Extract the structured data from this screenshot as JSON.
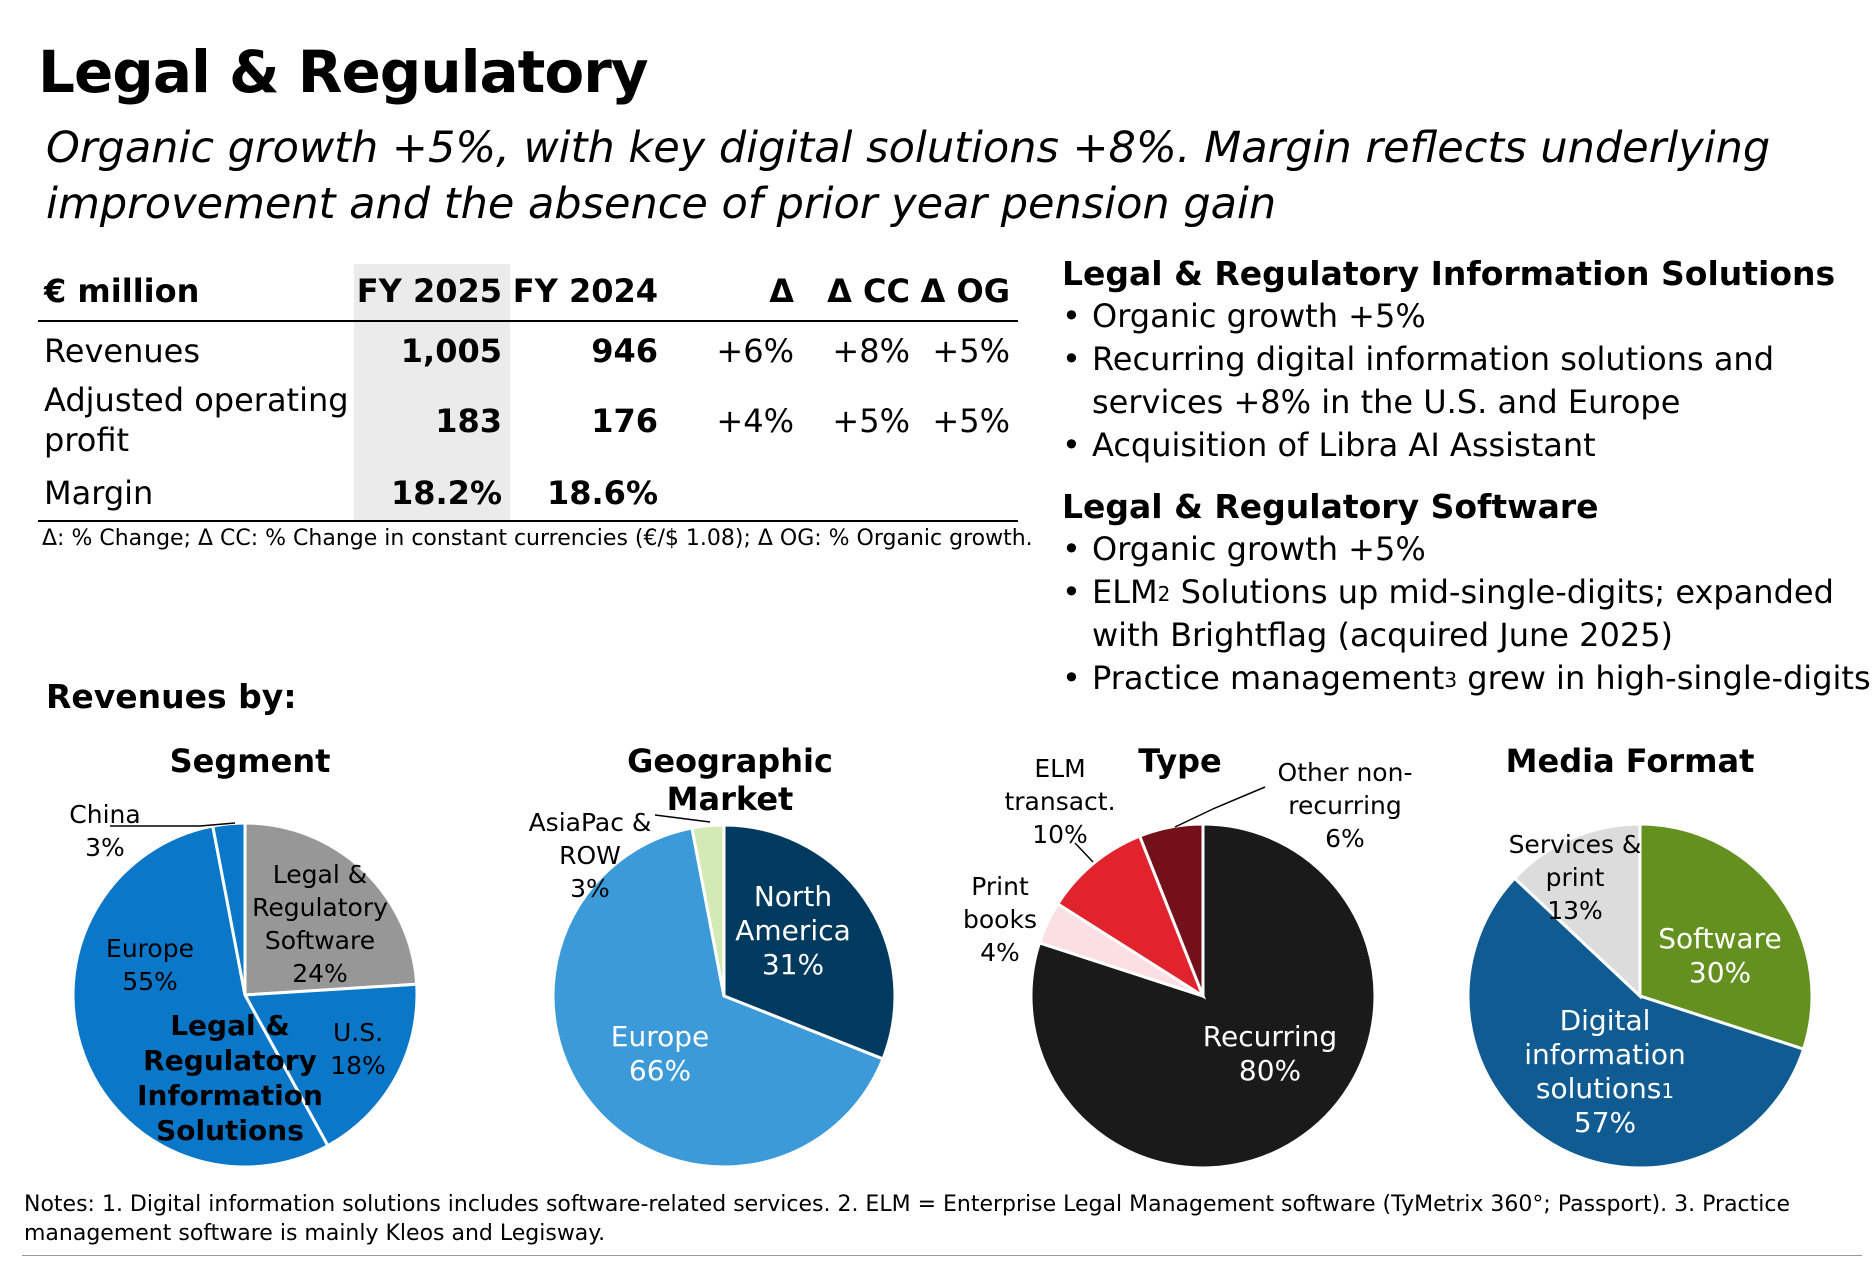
{
  "title": "Legal & Regulatory",
  "subtitle": "Organic growth +5%, with key digital solutions +8%. Margin reflects underlying improvement and the absence of prior year pension gain",
  "table": {
    "headers": [
      "€ million",
      "FY 2025",
      "FY 2024",
      "Δ",
      "Δ CC",
      "Δ OG"
    ],
    "rows": [
      {
        "label": "Revenues",
        "fy2025": "1,005",
        "fy2024": "946",
        "d": "+6%",
        "dcc": "+8%",
        "dog": "+5%"
      },
      {
        "label": "Adjusted operating profit",
        "fy2025": "183",
        "fy2024": "176",
        "d": "+4%",
        "dcc": "+5%",
        "dog": "+5%"
      },
      {
        "label": "Margin",
        "fy2025": "18.2%",
        "fy2024": "18.6%",
        "d": "",
        "dcc": "",
        "dog": ""
      }
    ],
    "footnote": "Δ: % Change; Δ CC: % Change in constant currencies (€/$ 1.08); Δ OG: % Organic growth."
  },
  "right": {
    "section1": {
      "heading": "Legal & Regulatory Information Solutions",
      "bullets": [
        "Organic growth +5%",
        "Recurring digital information solutions and services +8% in the U.S. and Europe",
        "Acquisition of Libra AI Assistant"
      ]
    },
    "section2": {
      "heading": "Legal & Regulatory Software",
      "bullets": [
        "Organic growth +5%",
        "ELM",
        "2",
        " Solutions up mid-single-digits; expanded with Brightflag (acquired June 2025)",
        "Practice management",
        "3",
        " grew in high-single-digits"
      ]
    }
  },
  "revenues_by": "Revenues by:",
  "chart_data": [
    {
      "type": "pie",
      "title": "Segment",
      "slices": [
        {
          "label": "Legal & Regulatory Software",
          "value": 24,
          "pct": "24%",
          "color": "#979797"
        },
        {
          "label": "U.S.",
          "value": 18,
          "pct": "18%",
          "color": "#0a77c8"
        },
        {
          "label": "Europe",
          "value": 55,
          "pct": "55%",
          "color": "#0a77c8"
        },
        {
          "label": "China",
          "value": 3,
          "pct": "3%",
          "color": "#0a77c8"
        }
      ],
      "group_label": "Legal & Regulatory Information Solutions"
    },
    {
      "type": "pie",
      "title": "Geographic Market",
      "slices": [
        {
          "label": "North America",
          "value": 31,
          "pct": "31%",
          "color": "#003b5f"
        },
        {
          "label": "Europe",
          "value": 66,
          "pct": "66%",
          "color": "#3b9ad7"
        },
        {
          "label": "AsiaPac & ROW",
          "value": 3,
          "pct": "3%",
          "color": "#d3e9b6"
        }
      ]
    },
    {
      "type": "pie",
      "title": "Type",
      "slices": [
        {
          "label": "Recurring",
          "value": 80,
          "pct": "80%",
          "color": "#1b1a1a"
        },
        {
          "label": "Print books",
          "value": 4,
          "pct": "4%",
          "color": "#fbdfe3"
        },
        {
          "label": "ELM transact.",
          "value": 10,
          "pct": "10%",
          "color": "#e1232d"
        },
        {
          "label": "Other non-recurring",
          "value": 6,
          "pct": "6%",
          "color": "#74101a"
        }
      ]
    },
    {
      "type": "pie",
      "title": "Media Format",
      "slices": [
        {
          "label": "Software",
          "value": 30,
          "pct": "30%",
          "color": "#63901f"
        },
        {
          "label": "Digital information solutions",
          "label_sup": "1",
          "value": 57,
          "pct": "57%",
          "color": "#0f5b92"
        },
        {
          "label": "Services & print",
          "value": 13,
          "pct": "13%",
          "color": "#dcdcdc"
        }
      ]
    }
  ],
  "labels": {
    "seg_software_l1": "Legal &",
    "seg_software_l2": "Regulatory",
    "seg_software_l3": "Software",
    "seg_china": "China",
    "geo_asia_l1": "AsiaPac &",
    "geo_asia_l2": "ROW",
    "geo_na_l1": "North",
    "geo_na_l2": "America",
    "group_l1": "Legal &",
    "group_l2": "Regulatory",
    "group_l3": "Information",
    "group_l4": "Solutions",
    "type_elm_l1": "ELM",
    "type_elm_l2": "transact.",
    "type_print_l1": "Print",
    "type_print_l2": "books",
    "type_other_l1": "Other non-",
    "type_other_l2": "recurring",
    "mf_services_l1": "Services &",
    "mf_services_l2": "print",
    "mf_dis_l1": "Digital",
    "mf_dis_l2": "information",
    "mf_dis_l3": "solutions"
  },
  "notes": "Notes: 1. Digital information solutions includes software-related services. 2. ELM = Enterprise Legal Management software (TyMetrix 360°; Passport). 3. Practice management software is mainly Kleos and Legisway."
}
